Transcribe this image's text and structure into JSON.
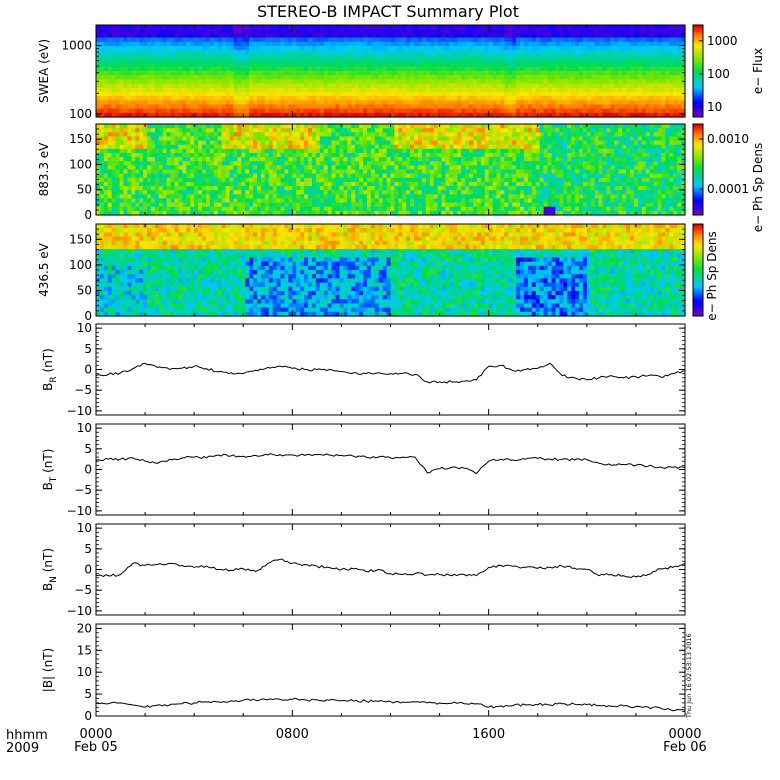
{
  "figure": {
    "title": "STEREO-B IMPACT Summary Plot",
    "time_label_1": "hhmm",
    "time_label_2": "2009",
    "stamp": "Thu Jun 16 02:53:13 2016",
    "x_ticks": [
      {
        "hhmm": "0000",
        "date": "Feb 05",
        "hour": 0
      },
      {
        "hhmm": "0800",
        "date": "",
        "hour": 8
      },
      {
        "hhmm": "1600",
        "date": "",
        "hour": 16
      },
      {
        "hhmm": "0000",
        "date": "Feb 06",
        "hour": 24
      }
    ]
  },
  "chart_data": [
    {
      "type": "heatmap",
      "ylabel": "SWEA (eV)",
      "y_scale": "log",
      "ylim": [
        90,
        2000
      ],
      "y_ticks": [
        "100",
        "1000"
      ],
      "y_tick_values": [
        100,
        1000
      ],
      "colorbar": {
        "label": "e− Flux",
        "scale": "log",
        "ticks": [
          "10",
          "100",
          "1000"
        ],
        "tick_values": [
          10,
          100,
          1000
        ],
        "range": [
          5,
          3000
        ]
      }
    },
    {
      "type": "heatmap",
      "ylabel": "883.3 eV",
      "ylim": [
        0,
        180
      ],
      "y_ticks": [
        "0",
        "50",
        "100",
        "150"
      ],
      "y_tick_values": [
        0,
        50,
        100,
        150
      ],
      "colorbar": {
        "label": "e− Ph Sp Dens",
        "scale": "log",
        "ticks": [
          "0.0001",
          "0.0010"
        ],
        "tick_values": [
          0.0001,
          0.001
        ],
        "range": [
          3e-05,
          0.002
        ]
      }
    },
    {
      "type": "heatmap",
      "ylabel": "436.5 eV",
      "ylim": [
        0,
        180
      ],
      "y_ticks": [
        "0",
        "50",
        "100",
        "150"
      ],
      "y_tick_values": [
        0,
        50,
        100,
        150
      ],
      "colorbar": {
        "label": "e− Ph Sp Dens",
        "scale": "log",
        "ticks": [],
        "tick_values": []
      }
    },
    {
      "type": "line",
      "ylabel_main": "B",
      "ylabel_sub": "R",
      "ylabel_unit": "(nT)",
      "ylim": [
        -11,
        11
      ],
      "y_ticks": [
        "−10",
        "−5",
        "0",
        "5",
        "10"
      ],
      "y_tick_values": [
        -10,
        -5,
        0,
        5,
        10
      ],
      "x": [
        0,
        0.5,
        1,
        1.5,
        2,
        2.5,
        3,
        3.5,
        4,
        4.5,
        5,
        5.5,
        6,
        6.5,
        7,
        7.5,
        8,
        8.5,
        9,
        9.5,
        10,
        10.5,
        11,
        11.5,
        12,
        12.5,
        13,
        13.5,
        14,
        14.5,
        15,
        15.5,
        16,
        16.5,
        17,
        17.5,
        18,
        18.5,
        19,
        19.5,
        20,
        20.5,
        21,
        21.5,
        22,
        22.5,
        23,
        23.5,
        24
      ],
      "y": [
        -1.5,
        -1.2,
        -0.8,
        0.2,
        1.5,
        0.5,
        0,
        0.3,
        0.8,
        0.2,
        -0.5,
        -0.8,
        -1,
        -0.2,
        0.5,
        0.8,
        0.3,
        0,
        0,
        0,
        -0.5,
        -0.8,
        -1,
        -0.8,
        -1,
        -0.9,
        -1.2,
        -3,
        -3,
        -3,
        -2.8,
        -2.5,
        0.8,
        1,
        -0.3,
        0,
        0.3,
        1.5,
        -1.5,
        -2,
        -2.5,
        -2,
        -1.5,
        -2,
        -1.8,
        -1.5,
        -1.8,
        -1,
        -0.3
      ]
    },
    {
      "type": "line",
      "ylabel_main": "B",
      "ylabel_sub": "T",
      "ylabel_unit": "(nT)",
      "ylim": [
        -11,
        11
      ],
      "y_ticks": [
        "−10",
        "−5",
        "0",
        "5",
        "10"
      ],
      "y_tick_values": [
        -10,
        -5,
        0,
        5,
        10
      ],
      "x": [
        0,
        0.5,
        1,
        1.5,
        2,
        2.5,
        3,
        3.5,
        4,
        4.5,
        5,
        5.5,
        6,
        6.5,
        7,
        7.5,
        8,
        8.5,
        9,
        9.5,
        10,
        10.5,
        11,
        11.5,
        12,
        12.5,
        13,
        13.5,
        14,
        14.5,
        15,
        15.5,
        16,
        16.5,
        17,
        17.5,
        18,
        18.5,
        19,
        19.5,
        20,
        20.5,
        21,
        21.5,
        22,
        22.5,
        23,
        23.5,
        24
      ],
      "y": [
        2.2,
        2.5,
        2.5,
        2.8,
        2,
        1.5,
        2.5,
        2.8,
        3,
        2.8,
        3.5,
        3.3,
        3.2,
        3.4,
        3.5,
        3.6,
        3.5,
        3.4,
        3.6,
        3.5,
        3.4,
        3.2,
        3,
        3,
        2.8,
        3,
        3,
        -0.8,
        0.2,
        0.5,
        0.3,
        -1,
        2,
        2.5,
        2.3,
        2.5,
        2.7,
        2.5,
        2.5,
        2.3,
        2.4,
        1.5,
        1,
        1.2,
        1,
        0.8,
        0.6,
        0.5,
        0.4
      ]
    },
    {
      "type": "line",
      "ylabel_main": "B",
      "ylabel_sub": "N",
      "ylabel_unit": "(nT)",
      "ylim": [
        -11,
        11
      ],
      "y_ticks": [
        "−10",
        "−5",
        "0",
        "5",
        "10"
      ],
      "y_tick_values": [
        -10,
        -5,
        0,
        5,
        10
      ],
      "x": [
        0,
        0.5,
        1,
        1.5,
        2,
        2.5,
        3,
        3.5,
        4,
        4.5,
        5,
        5.5,
        6,
        6.5,
        7,
        7.5,
        8,
        8.5,
        9,
        9.5,
        10,
        10.5,
        11,
        11.5,
        12,
        12.5,
        13,
        13.5,
        14,
        14.5,
        15,
        15.5,
        16,
        16.5,
        17,
        17.5,
        18,
        18.5,
        19,
        19.5,
        20,
        20.5,
        21,
        21.5,
        22,
        22.5,
        23,
        23.5,
        24
      ],
      "y": [
        -1.5,
        -1.5,
        -1.2,
        1.5,
        1,
        1.2,
        1.5,
        1,
        0.5,
        0.8,
        0,
        -0.2,
        0.2,
        -0.5,
        1.5,
        2.5,
        1.5,
        1.2,
        0.8,
        0.5,
        0,
        0.2,
        -0.5,
        0,
        -1,
        -1.2,
        -1,
        -1.3,
        -1.2,
        -1.5,
        -1.2,
        -1.5,
        0.5,
        1,
        0.8,
        0.5,
        0.3,
        0.5,
        0.8,
        0.3,
        0,
        -1.5,
        -1.2,
        -1.5,
        -1.8,
        -1.2,
        0.2,
        0.5,
        1.5
      ]
    },
    {
      "type": "line",
      "ylabel_main": "|B|",
      "ylabel_sub": "",
      "ylabel_unit": "(nT)",
      "ylim": [
        0,
        21
      ],
      "y_ticks": [
        "0",
        "5",
        "10",
        "15",
        "20"
      ],
      "y_tick_values": [
        0,
        5,
        10,
        15,
        20
      ],
      "x": [
        0,
        0.5,
        1,
        1.5,
        2,
        2.5,
        3,
        3.5,
        4,
        4.5,
        5,
        5.5,
        6,
        6.5,
        7,
        7.5,
        8,
        8.5,
        9,
        9.5,
        10,
        10.5,
        11,
        11.5,
        12,
        12.5,
        13,
        13.5,
        14,
        14.5,
        15,
        15.5,
        16,
        16.5,
        17,
        17.5,
        18,
        18.5,
        19,
        19.5,
        20,
        20.5,
        21,
        21.5,
        22,
        22.5,
        23,
        23.5,
        24
      ],
      "y": [
        3,
        2.8,
        3,
        2.5,
        2,
        2.5,
        2.5,
        2.8,
        3,
        3.2,
        3.2,
        3.5,
        3.6,
        3.6,
        3.7,
        3.8,
        3.8,
        3.7,
        3.7,
        3.6,
        3.5,
        3.4,
        3.4,
        3.3,
        3.3,
        3.2,
        3.2,
        3,
        3,
        2.9,
        2.8,
        2.8,
        2,
        2.3,
        2.4,
        2.5,
        2.6,
        2.5,
        2.8,
        2.7,
        2.6,
        2.4,
        2.2,
        2.3,
        2.2,
        2,
        1.8,
        1.2,
        1.3
      ]
    }
  ]
}
